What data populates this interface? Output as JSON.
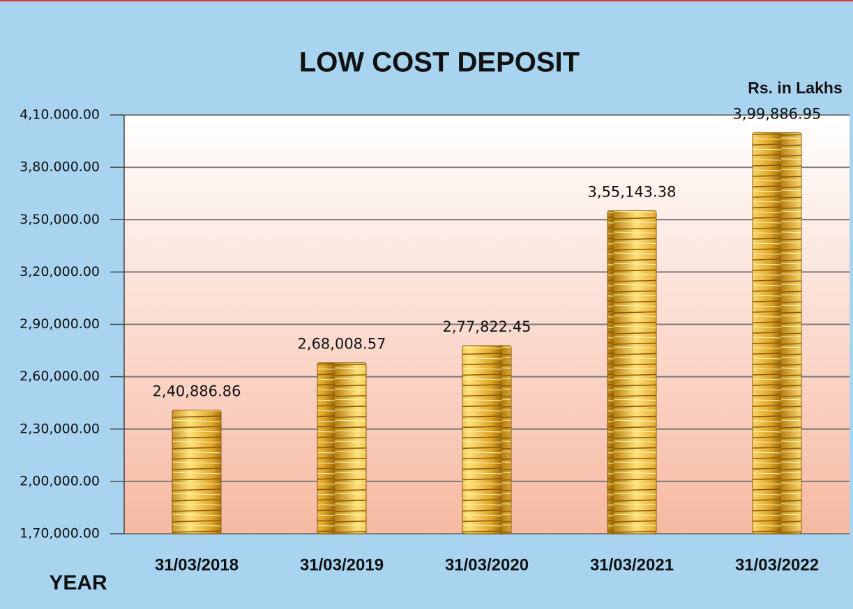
{
  "chart_data": {
    "type": "bar",
    "title": "LOW COST DEPOSIT",
    "unit_label": "Rs. in Lakhs",
    "x_label": "YEAR",
    "categories": [
      "31/03/2018",
      "31/03/2019",
      "31/03/2020",
      "31/03/2021",
      "31/03/2022"
    ],
    "values": [
      240886.86,
      268008.57,
      277822.45,
      355143.38,
      399886.95
    ],
    "value_labels": [
      "2,40,886.86",
      "2,68,008.57",
      "2,77,822.45",
      "3,55,143.38",
      "3,99,886.95"
    ],
    "color": "#e8b83a",
    "ylim": [
      170000,
      410000
    ],
    "yticks": [
      {
        "value": 170000,
        "label": "1,70,000.00"
      },
      {
        "value": 200000,
        "label": "2,00,000.00"
      },
      {
        "value": 230000,
        "label": "2,30,000.00"
      },
      {
        "value": 260000,
        "label": "2,60,000.00"
      },
      {
        "value": 290000,
        "label": "2,90,000.00"
      },
      {
        "value": 320000,
        "label": "3,20,000.00"
      },
      {
        "value": 350000,
        "label": "3,50,000.00"
      },
      {
        "value": 380000,
        "label": "3,80.000.00"
      },
      {
        "value": 410000,
        "label": "4,10.000.00"
      }
    ],
    "grid": true
  }
}
